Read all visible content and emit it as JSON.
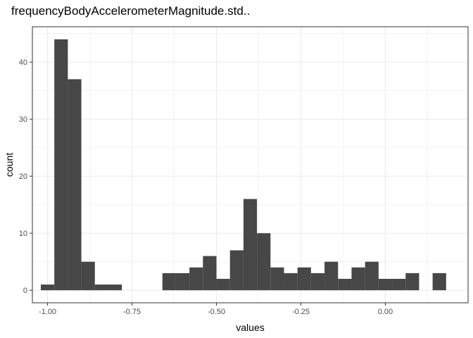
{
  "chart_data": {
    "type": "bar",
    "subtype": "histogram",
    "title": "frequencyBodyAccelerometerMagnitude.std..",
    "xlabel": "values",
    "ylabel": "count",
    "xlim": [
      -1.045,
      0.245
    ],
    "ylim": [
      -2.2,
      46.2
    ],
    "x_ticks": [
      -1.0,
      -0.75,
      -0.5,
      -0.25,
      0.0
    ],
    "x_tick_labels": [
      "-1.00",
      "-0.75",
      "-0.50",
      "-0.25",
      "0.00"
    ],
    "y_ticks": [
      0,
      10,
      20,
      30,
      40
    ],
    "y_tick_labels": [
      "0",
      "10",
      "20",
      "30",
      "40"
    ],
    "bin_width": 0.04,
    "bins": [
      {
        "x0": -1.02,
        "x1": -0.98,
        "count": 1
      },
      {
        "x0": -0.98,
        "x1": -0.94,
        "count": 44
      },
      {
        "x0": -0.94,
        "x1": -0.9,
        "count": 37
      },
      {
        "x0": -0.9,
        "x1": -0.86,
        "count": 5
      },
      {
        "x0": -0.86,
        "x1": -0.82,
        "count": 1
      },
      {
        "x0": -0.82,
        "x1": -0.78,
        "count": 1
      },
      {
        "x0": -0.66,
        "x1": -0.62,
        "count": 3
      },
      {
        "x0": -0.62,
        "x1": -0.58,
        "count": 3
      },
      {
        "x0": -0.58,
        "x1": -0.54,
        "count": 4
      },
      {
        "x0": -0.54,
        "x1": -0.5,
        "count": 6
      },
      {
        "x0": -0.5,
        "x1": -0.46,
        "count": 2
      },
      {
        "x0": -0.46,
        "x1": -0.42,
        "count": 7
      },
      {
        "x0": -0.42,
        "x1": -0.38,
        "count": 16
      },
      {
        "x0": -0.38,
        "x1": -0.34,
        "count": 10
      },
      {
        "x0": -0.34,
        "x1": -0.3,
        "count": 4
      },
      {
        "x0": -0.3,
        "x1": -0.26,
        "count": 3
      },
      {
        "x0": -0.26,
        "x1": -0.22,
        "count": 4
      },
      {
        "x0": -0.22,
        "x1": -0.18,
        "count": 3
      },
      {
        "x0": -0.18,
        "x1": -0.14,
        "count": 5
      },
      {
        "x0": -0.14,
        "x1": -0.1,
        "count": 2
      },
      {
        "x0": -0.1,
        "x1": -0.06,
        "count": 4
      },
      {
        "x0": -0.06,
        "x1": -0.02,
        "count": 5
      },
      {
        "x0": -0.02,
        "x1": 0.02,
        "count": 2
      },
      {
        "x0": 0.02,
        "x1": 0.06,
        "count": 2
      },
      {
        "x0": 0.06,
        "x1": 0.1,
        "count": 3
      },
      {
        "x0": 0.14,
        "x1": 0.18,
        "count": 3
      }
    ],
    "bar_color": "#474747",
    "panel_border_color": "#333333",
    "grid": true,
    "grid_color": "#ebebeb",
    "legend": "none"
  }
}
